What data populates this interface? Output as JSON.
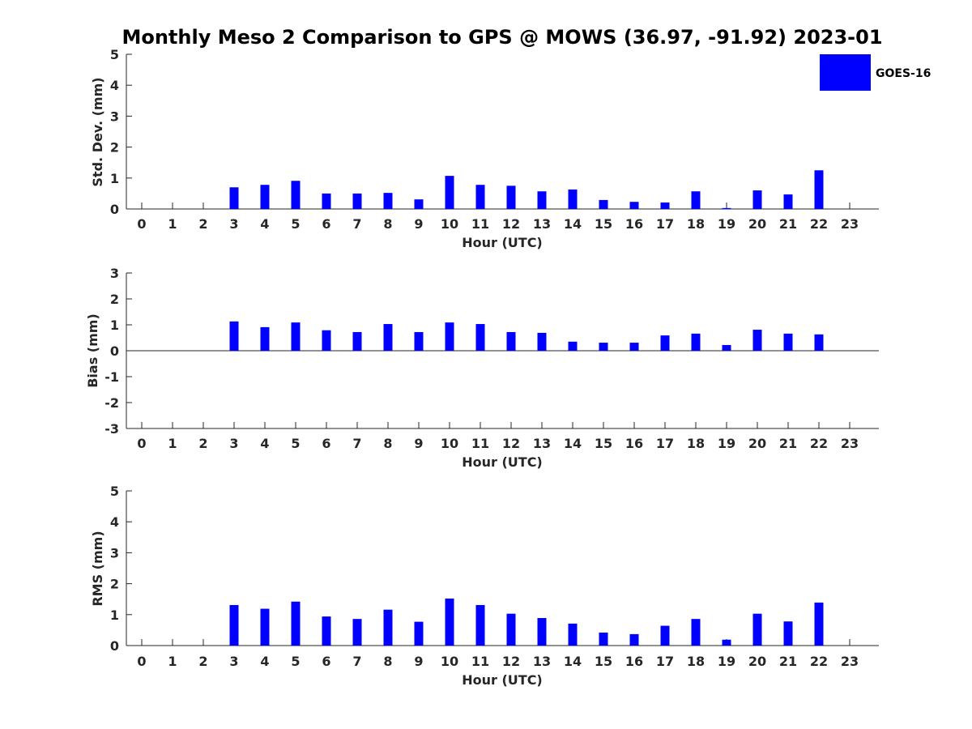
{
  "figure": {
    "title": "Monthly Meso 2 Comparison to GPS @ MOWS (36.97, -91.92) 2023-01"
  },
  "legend": {
    "label": "GOES-16",
    "color": "#0000ff",
    "placement": "top-right"
  },
  "chart_data": [
    {
      "type": "bar",
      "xlabel": "Hour (UTC)",
      "ylabel": "Std. Dev. (mm)",
      "ylim": [
        0,
        5
      ],
      "yticks": [
        0,
        1,
        2,
        3,
        4,
        5
      ],
      "categories": [
        "0",
        "1",
        "2",
        "3",
        "4",
        "5",
        "6",
        "7",
        "8",
        "9",
        "10",
        "11",
        "12",
        "13",
        "14",
        "15",
        "16",
        "17",
        "18",
        "19",
        "20",
        "21",
        "22",
        "23"
      ],
      "series": [
        {
          "name": "GOES-16",
          "values": [
            null,
            null,
            null,
            0.7,
            0.78,
            0.91,
            0.5,
            0.5,
            0.52,
            0.31,
            1.07,
            0.78,
            0.75,
            0.57,
            0.63,
            0.29,
            0.23,
            0.21,
            0.57,
            0.03,
            0.6,
            0.47,
            1.25,
            null
          ]
        }
      ]
    },
    {
      "type": "bar",
      "xlabel": "Hour (UTC)",
      "ylabel": "Bias (mm)",
      "ylim": [
        -3,
        3
      ],
      "yticks": [
        -3,
        -2,
        -1,
        0,
        1,
        2,
        3
      ],
      "zero_line": true,
      "categories": [
        "0",
        "1",
        "2",
        "3",
        "4",
        "5",
        "6",
        "7",
        "8",
        "9",
        "10",
        "11",
        "12",
        "13",
        "14",
        "15",
        "16",
        "17",
        "18",
        "19",
        "20",
        "21",
        "22",
        "23"
      ],
      "series": [
        {
          "name": "GOES-16",
          "values": [
            null,
            null,
            null,
            1.13,
            0.91,
            1.09,
            0.79,
            0.72,
            1.03,
            0.72,
            1.09,
            1.03,
            0.72,
            0.69,
            0.35,
            0.31,
            0.31,
            0.59,
            0.66,
            0.22,
            0.81,
            0.66,
            0.63,
            null
          ]
        }
      ]
    },
    {
      "type": "bar",
      "xlabel": "Hour (UTC)",
      "ylabel": "RMS (mm)",
      "ylim": [
        0,
        5
      ],
      "yticks": [
        0,
        1,
        2,
        3,
        4,
        5
      ],
      "categories": [
        "0",
        "1",
        "2",
        "3",
        "4",
        "5",
        "6",
        "7",
        "8",
        "9",
        "10",
        "11",
        "12",
        "13",
        "14",
        "15",
        "16",
        "17",
        "18",
        "19",
        "20",
        "21",
        "22",
        "23"
      ],
      "series": [
        {
          "name": "GOES-16",
          "values": [
            null,
            null,
            null,
            1.31,
            1.19,
            1.42,
            0.94,
            0.86,
            1.16,
            0.77,
            1.52,
            1.31,
            1.03,
            0.89,
            0.71,
            0.42,
            0.37,
            0.64,
            0.86,
            0.19,
            1.03,
            0.78,
            1.39,
            null
          ]
        }
      ]
    }
  ]
}
